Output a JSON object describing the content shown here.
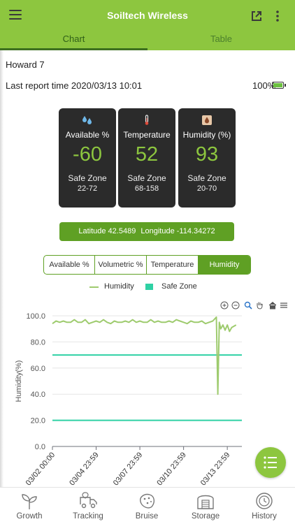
{
  "app": {
    "title": "Soiltech Wireless"
  },
  "tabs": [
    {
      "label": "Chart",
      "active": true
    },
    {
      "label": "Table",
      "active": false
    }
  ],
  "device": {
    "name": "Howard 7",
    "report_label": "Last report time 2020/03/13 10:01",
    "battery": "100%"
  },
  "cards": [
    {
      "label": "Available %",
      "value": "-60",
      "safe_label": "Safe Zone",
      "range": "22-72",
      "icon": "water-drops-icon"
    },
    {
      "label": "Temperature",
      "value": "52",
      "safe_label": "Safe Zone",
      "range": "68-158",
      "icon": "thermometer-icon"
    },
    {
      "label": "Humidity (%)",
      "value": "93",
      "safe_label": "Safe Zone",
      "range": "20-70",
      "icon": "humidity-icon"
    }
  ],
  "location": {
    "latitude": "Latitude 42.5489",
    "longitude": "Longitude -114.34272"
  },
  "segments": [
    {
      "label": "Available %",
      "active": false
    },
    {
      "label": "Volumetric %",
      "active": false
    },
    {
      "label": "Temperature",
      "active": false
    },
    {
      "label": "Humidity",
      "active": true
    }
  ],
  "colors": {
    "brand": "#8dc63f",
    "accent_dark": "#5fa024",
    "series": "#9ecb6e",
    "safe_zone": "#2fd1a4"
  },
  "chart_data": {
    "type": "line",
    "ylabel": "Humidity(%)",
    "xlabel": "",
    "ylim": [
      0,
      100
    ],
    "y_ticks": [
      "100.0",
      "80.0",
      "60.0",
      "40.0",
      "20.0",
      "0.0"
    ],
    "x_ticks": [
      "03/02 00:00",
      "03/04 23:59",
      "03/07 23:59",
      "03/10 23:59",
      "03/13 23:59"
    ],
    "legend": [
      "Humidity",
      "Safe Zone"
    ],
    "legend_position": "top",
    "safe_zone": [
      20,
      70
    ],
    "series": [
      {
        "name": "Humidity",
        "x_days": [
          0,
          0.25,
          0.5,
          0.75,
          1,
          1.25,
          1.5,
          1.75,
          2,
          2.25,
          2.5,
          2.75,
          3,
          3.25,
          3.5,
          3.75,
          4,
          4.25,
          4.5,
          4.75,
          5,
          5.25,
          5.5,
          5.75,
          6,
          6.25,
          6.5,
          6.75,
          7,
          7.25,
          7.5,
          7.75,
          8,
          8.25,
          8.5,
          8.75,
          9,
          9.25,
          9.5,
          9.75,
          10,
          10.25,
          10.5,
          10.75,
          11,
          11.25,
          11.35,
          11.45,
          11.55,
          11.7,
          11.85,
          12.0,
          12.15,
          12.3,
          12.45,
          12.6
        ],
        "values": [
          94,
          96,
          95,
          96,
          95,
          95,
          97,
          95,
          95,
          97,
          94,
          95,
          96,
          95,
          97,
          95,
          94,
          96,
          95,
          95,
          96,
          95,
          97,
          95,
          96,
          95,
          95,
          97,
          95,
          96,
          95,
          95,
          96,
          95,
          97,
          96,
          95,
          94,
          96,
          95,
          95,
          96,
          94,
          95,
          96,
          99,
          40,
          95,
          90,
          93,
          89,
          93,
          88,
          91,
          92,
          93
        ]
      }
    ]
  },
  "nav": [
    {
      "label": "Growth",
      "icon": "sprout-icon"
    },
    {
      "label": "Tracking",
      "icon": "truck-icon"
    },
    {
      "label": "Bruise",
      "icon": "potato-icon"
    },
    {
      "label": "Storage",
      "icon": "storage-barn-icon"
    },
    {
      "label": "History",
      "icon": "history-clock-icon"
    }
  ]
}
